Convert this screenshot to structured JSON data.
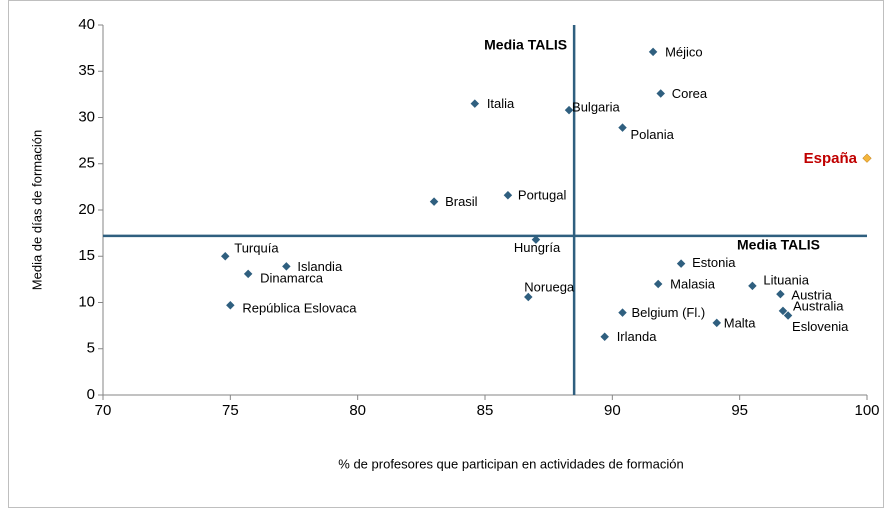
{
  "chart_data": {
    "type": "scatter",
    "xlabel": "% de profesores que participan en actividades de formación",
    "ylabel": "Media de días de formación",
    "xlim": [
      70,
      100
    ],
    "xticks": [
      70,
      75,
      80,
      85,
      90,
      95,
      100
    ],
    "ylim": [
      0,
      40
    ],
    "yticks": [
      0,
      5,
      10,
      15,
      20,
      25,
      30,
      35,
      40
    ],
    "reference_lines": {
      "x": 88.5,
      "y": 17.2,
      "color": "#2f5f7f",
      "x_label": "Media TALIS",
      "y_label": "Media TALIS"
    },
    "series": [
      {
        "color": "#2f5f7f",
        "label_color": "#000000",
        "labels": [
          "Turquía",
          "Dinamarca",
          "Islandia",
          "República Eslovaca",
          "Brasil",
          "Italia",
          "Portugal",
          "Hungría",
          "Noruega",
          "Bulgaria",
          "Polania",
          "Méjico",
          "Corea",
          "Irlanda",
          "Belgium (Fl.)",
          "Malasia",
          "Estonia",
          "Malta",
          "Lituania",
          "Austria",
          "Australia",
          "Eslovenia"
        ],
        "x": [
          74.8,
          75.7,
          77.2,
          75.0,
          83.0,
          84.6,
          85.9,
          87.0,
          86.7,
          88.3,
          90.4,
          91.6,
          91.9,
          89.7,
          90.4,
          91.8,
          92.7,
          94.1,
          95.5,
          96.6,
          96.7,
          96.9
        ],
        "values": [
          15.0,
          13.1,
          13.9,
          9.7,
          20.9,
          31.5,
          21.6,
          16.8,
          10.6,
          30.8,
          28.9,
          37.1,
          32.6,
          6.3,
          8.9,
          12.0,
          14.2,
          7.8,
          11.8,
          10.9,
          9.1,
          8.6
        ]
      },
      {
        "color": "#f4b63c",
        "label_color": "#c00000",
        "labels": [
          "España"
        ],
        "x": [
          100
        ],
        "values": [
          25.6
        ]
      }
    ]
  }
}
